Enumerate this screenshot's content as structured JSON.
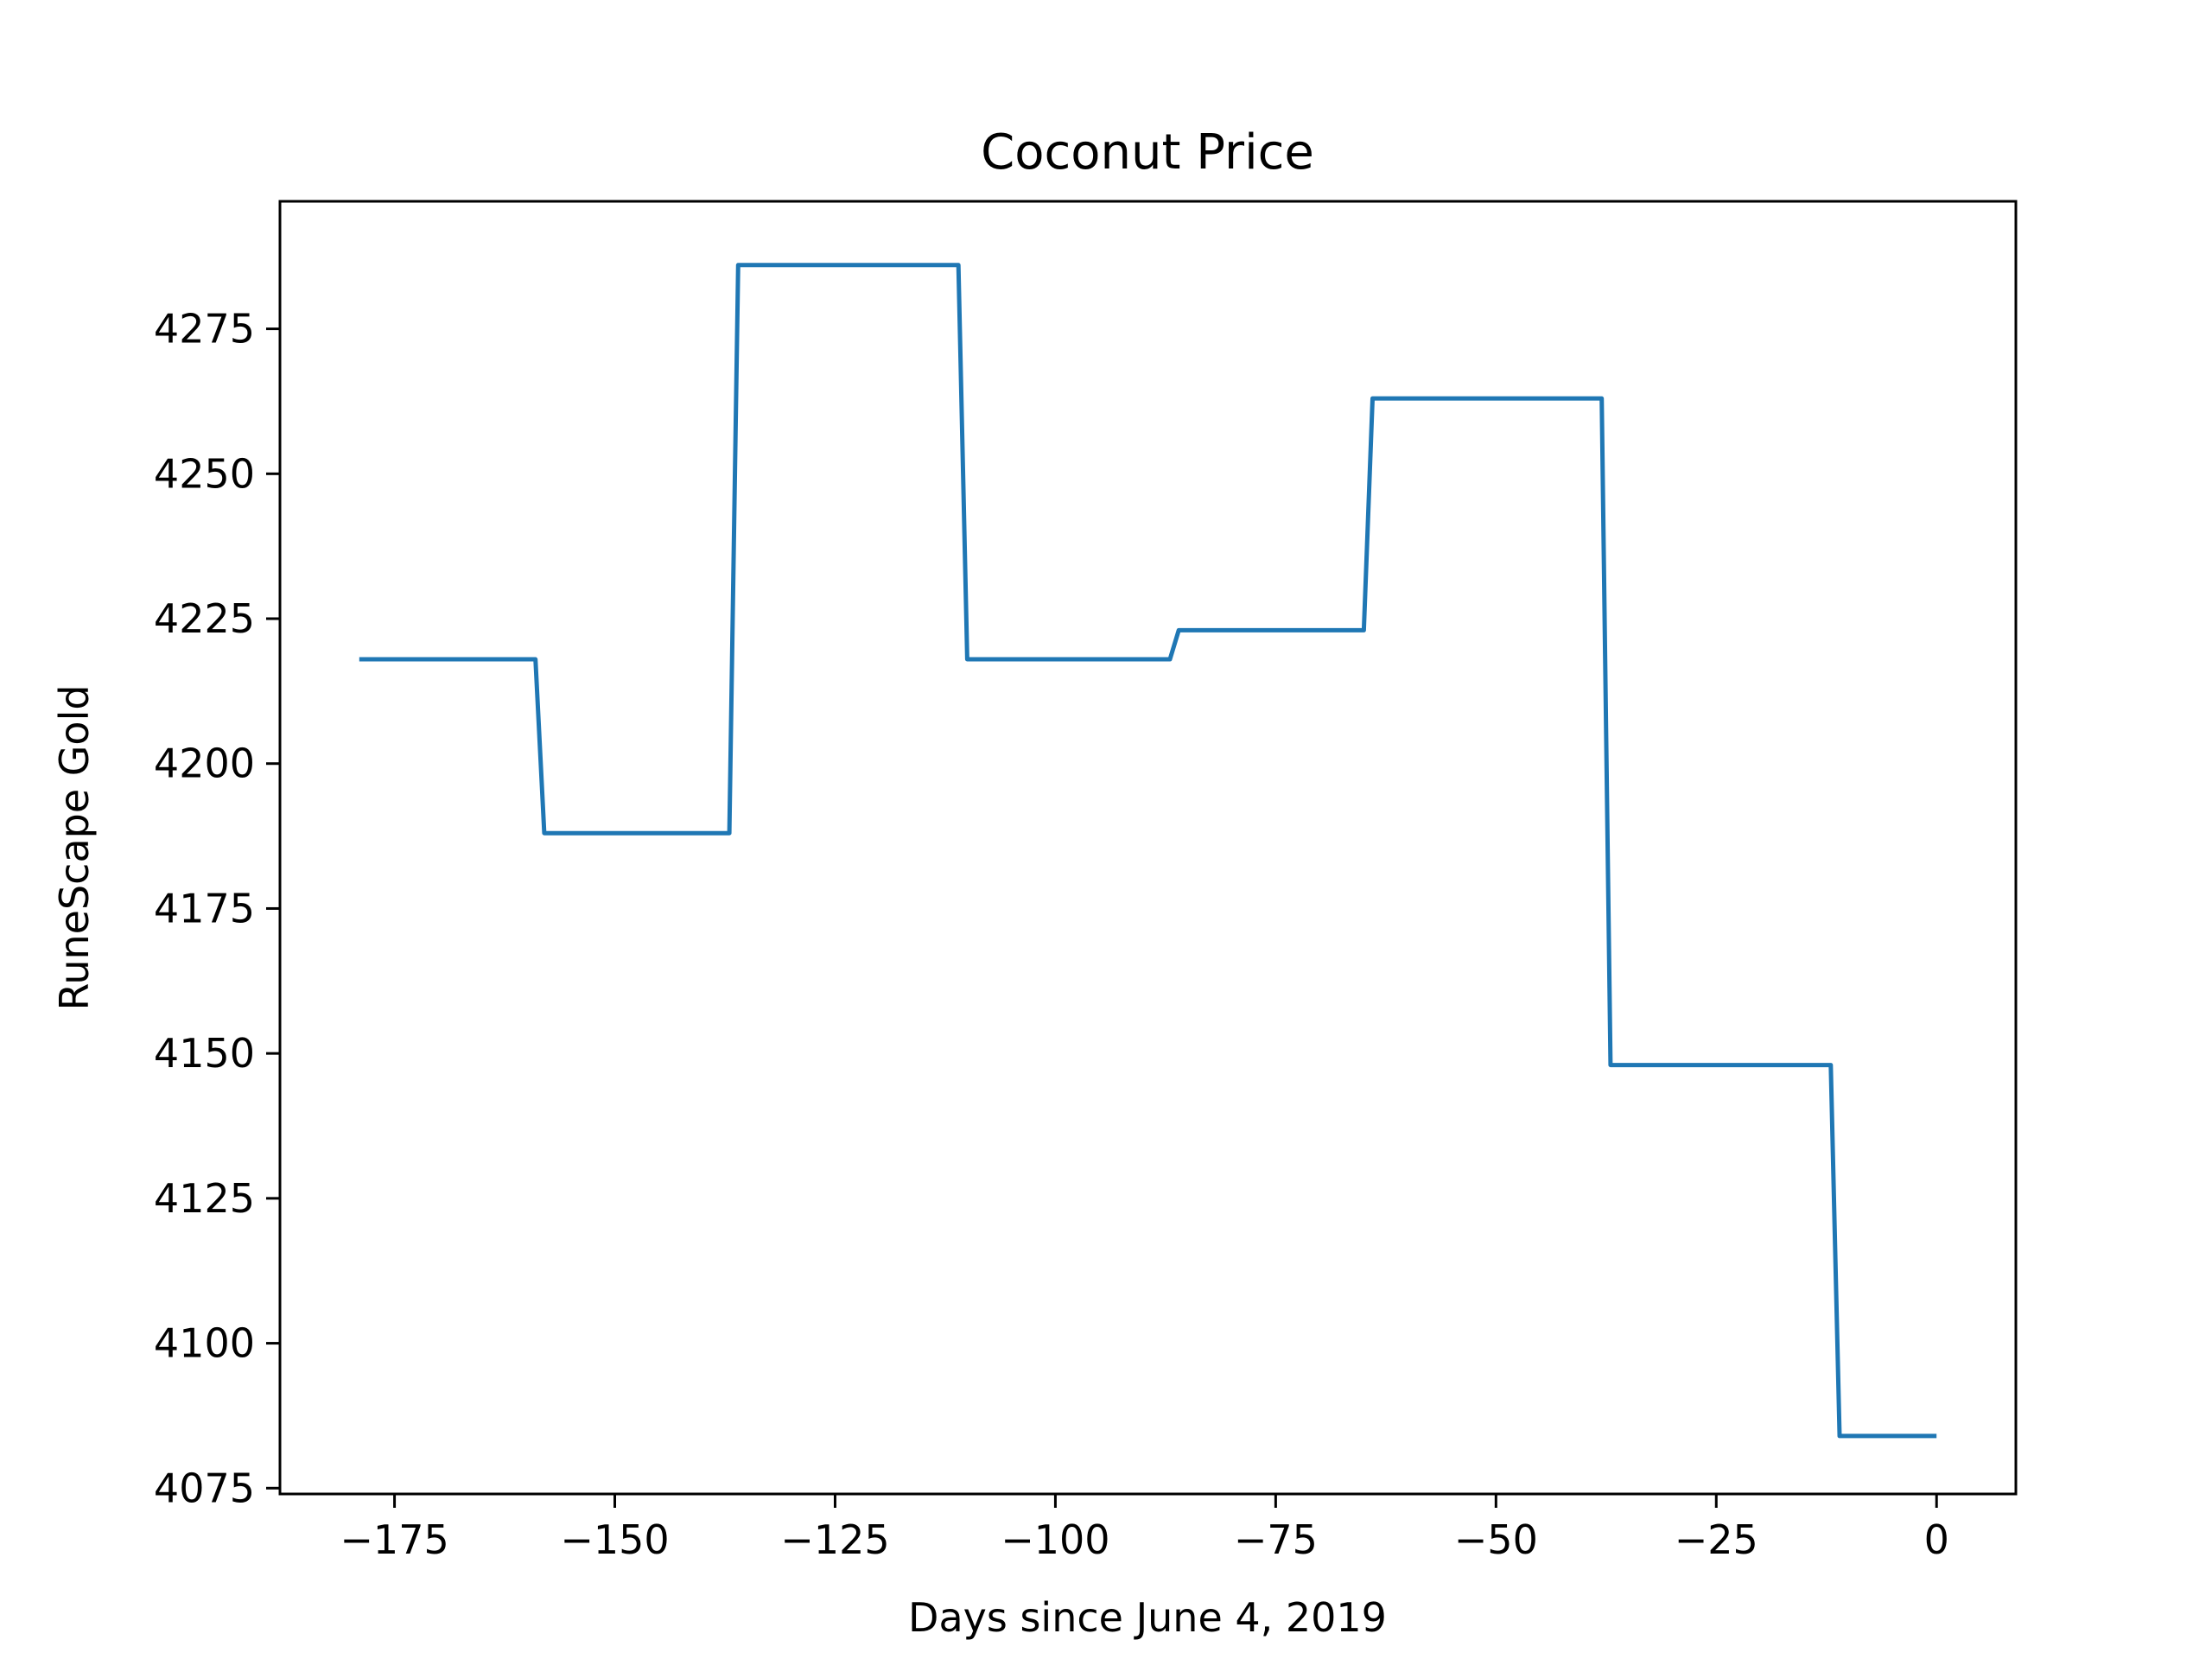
{
  "chart_data": {
    "type": "line",
    "title": "Coconut Price",
    "xlabel": "Days since June 4, 2019",
    "ylabel": "RuneScape Gold",
    "xlim": [
      -188,
      9
    ],
    "ylim": [
      4074,
      4297
    ],
    "xticks": [
      -175,
      -150,
      -125,
      -100,
      -75,
      -50,
      -25,
      0
    ],
    "xtick_labels": [
      "−175",
      "−150",
      "−125",
      "−100",
      "−75",
      "−50",
      "−25",
      "0"
    ],
    "yticks": [
      4075,
      4100,
      4125,
      4150,
      4175,
      4200,
      4225,
      4250,
      4275
    ],
    "ytick_labels": [
      "4075",
      "4100",
      "4125",
      "4150",
      "4175",
      "4200",
      "4225",
      "4250",
      "4275"
    ],
    "grid": false,
    "legend": "none",
    "series": [
      {
        "color": "#1f77b4",
        "x": [
          -179,
          -159,
          -158,
          -137,
          -136,
          -111,
          -110,
          -87,
          -86,
          -65,
          -64,
          -38,
          -37,
          -12,
          -11,
          0
        ],
        "y": [
          4218,
          4218,
          4188,
          4188,
          4286,
          4286,
          4218,
          4218,
          4223,
          4223,
          4263,
          4263,
          4148,
          4148,
          4084,
          4084
        ]
      }
    ]
  }
}
